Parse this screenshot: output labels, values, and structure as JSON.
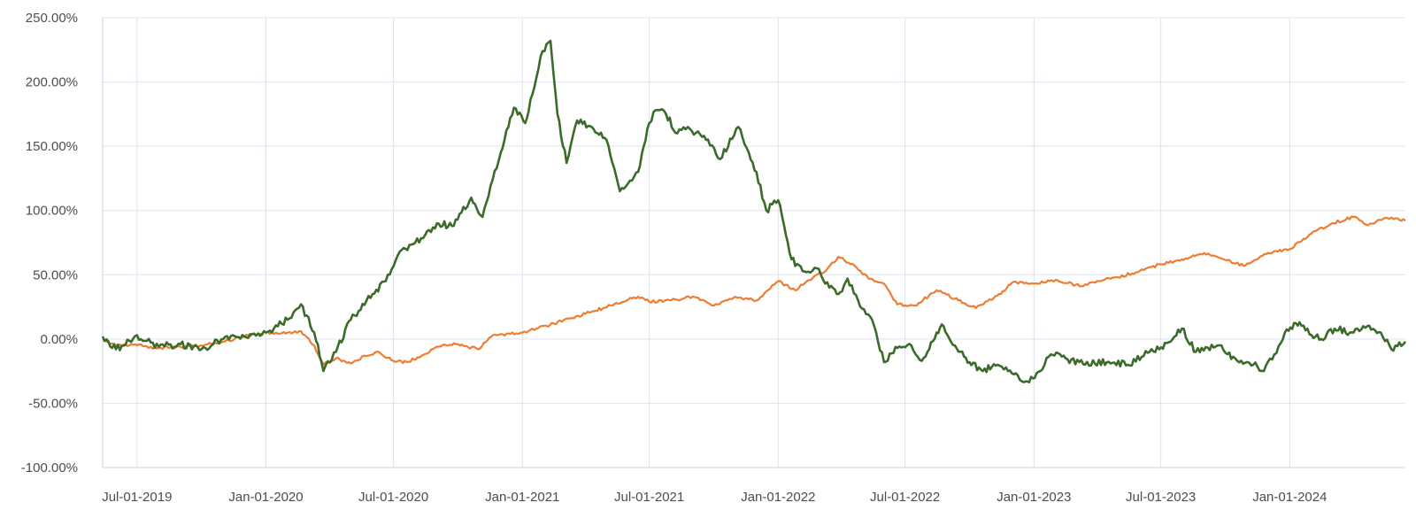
{
  "chart_data": {
    "type": "line",
    "title": "",
    "xlabel": "",
    "ylabel": "",
    "x_range": [
      "2019-05-13",
      "2024-06-14"
    ],
    "ylim": [
      -100,
      250
    ],
    "y_ticks": [
      250,
      200,
      150,
      100,
      50,
      0,
      -50,
      -100
    ],
    "y_tick_labels": [
      "250.00%",
      "200.00%",
      "150.00%",
      "100.00%",
      "50.00%",
      "0.00%",
      "-50.00%",
      "-100.00%"
    ],
    "x_ticks": [
      "2019-07-01",
      "2020-01-01",
      "2020-07-01",
      "2021-01-01",
      "2021-07-01",
      "2022-01-01",
      "2022-07-01",
      "2023-01-01",
      "2023-07-01",
      "2024-01-01"
    ],
    "x_tick_labels": [
      "Jul-01-2019",
      "Jan-01-2020",
      "Jul-01-2020",
      "Jan-01-2021",
      "Jul-01-2021",
      "Jan-01-2022",
      "Jul-01-2022",
      "Jan-01-2023",
      "Jul-01-2023",
      "Jan-01-2024"
    ],
    "grid": true,
    "legend": "none",
    "series": [
      {
        "color": "#ed7d31",
        "points": [
          [
            "2019-05-13",
            0
          ],
          [
            "2019-06-01",
            -5
          ],
          [
            "2019-07-01",
            -5
          ],
          [
            "2019-08-01",
            -7
          ],
          [
            "2019-09-01",
            -6
          ],
          [
            "2019-10-01",
            -5
          ],
          [
            "2019-11-01",
            -2
          ],
          [
            "2019-12-01",
            2
          ],
          [
            "2020-01-01",
            5
          ],
          [
            "2020-02-01",
            5
          ],
          [
            "2020-02-20",
            6
          ],
          [
            "2020-03-10",
            -5
          ],
          [
            "2020-03-23",
            -20
          ],
          [
            "2020-04-10",
            -15
          ],
          [
            "2020-05-01",
            -19
          ],
          [
            "2020-05-20",
            -13
          ],
          [
            "2020-06-10",
            -10
          ],
          [
            "2020-07-01",
            -17
          ],
          [
            "2020-07-20",
            -18
          ],
          [
            "2020-08-10",
            -13
          ],
          [
            "2020-09-01",
            -6
          ],
          [
            "2020-10-01",
            -4
          ],
          [
            "2020-10-30",
            -8
          ],
          [
            "2020-11-20",
            3
          ],
          [
            "2020-12-15",
            4
          ],
          [
            "2021-01-01",
            5
          ],
          [
            "2021-02-15",
            12
          ],
          [
            "2021-03-10",
            16
          ],
          [
            "2021-04-15",
            22
          ],
          [
            "2021-05-15",
            28
          ],
          [
            "2021-06-15",
            33
          ],
          [
            "2021-07-01",
            29
          ],
          [
            "2021-08-01",
            30
          ],
          [
            "2021-09-01",
            33
          ],
          [
            "2021-10-01",
            26
          ],
          [
            "2021-11-01",
            33
          ],
          [
            "2021-12-01",
            30
          ],
          [
            "2022-01-01",
            45
          ],
          [
            "2022-01-25",
            38
          ],
          [
            "2022-02-20",
            48
          ],
          [
            "2022-03-10",
            53
          ],
          [
            "2022-03-28",
            64
          ],
          [
            "2022-04-20",
            57
          ],
          [
            "2022-05-10",
            47
          ],
          [
            "2022-06-01",
            43
          ],
          [
            "2022-06-20",
            27
          ],
          [
            "2022-07-15",
            26
          ],
          [
            "2022-08-15",
            38
          ],
          [
            "2022-09-15",
            30
          ],
          [
            "2022-10-10",
            24
          ],
          [
            "2022-11-15",
            35
          ],
          [
            "2022-12-01",
            44
          ],
          [
            "2023-01-01",
            43
          ],
          [
            "2023-02-01",
            46
          ],
          [
            "2023-03-10",
            41
          ],
          [
            "2023-04-01",
            45
          ],
          [
            "2023-05-01",
            48
          ],
          [
            "2023-06-01",
            53
          ],
          [
            "2023-07-01",
            58
          ],
          [
            "2023-07-31",
            62
          ],
          [
            "2023-09-01",
            67
          ],
          [
            "2023-10-27",
            57
          ],
          [
            "2023-12-01",
            67
          ],
          [
            "2024-01-01",
            70
          ],
          [
            "2024-02-01",
            82
          ],
          [
            "2024-03-01",
            90
          ],
          [
            "2024-04-01",
            95
          ],
          [
            "2024-04-19",
            89
          ],
          [
            "2024-05-20",
            94
          ],
          [
            "2024-06-14",
            92
          ]
        ]
      },
      {
        "color": "#3a6b2a",
        "points": [
          [
            "2019-05-13",
            2
          ],
          [
            "2019-06-01",
            -8
          ],
          [
            "2019-07-01",
            3
          ],
          [
            "2019-08-01",
            -6
          ],
          [
            "2019-09-01",
            -4
          ],
          [
            "2019-10-01",
            -8
          ],
          [
            "2019-11-01",
            0
          ],
          [
            "2019-12-01",
            2
          ],
          [
            "2020-01-01",
            5
          ],
          [
            "2020-02-01",
            15
          ],
          [
            "2020-02-20",
            27
          ],
          [
            "2020-03-10",
            5
          ],
          [
            "2020-03-23",
            -25
          ],
          [
            "2020-04-10",
            -10
          ],
          [
            "2020-05-01",
            15
          ],
          [
            "2020-06-01",
            35
          ],
          [
            "2020-06-20",
            45
          ],
          [
            "2020-07-10",
            68
          ],
          [
            "2020-08-01",
            75
          ],
          [
            "2020-09-01",
            90
          ],
          [
            "2020-09-25",
            88
          ],
          [
            "2020-10-20",
            110
          ],
          [
            "2020-11-05",
            95
          ],
          [
            "2020-12-01",
            145
          ],
          [
            "2020-12-20",
            180
          ],
          [
            "2021-01-05",
            168
          ],
          [
            "2021-01-15",
            190
          ],
          [
            "2021-01-27",
            220
          ],
          [
            "2021-02-10",
            232
          ],
          [
            "2021-02-20",
            175
          ],
          [
            "2021-03-05",
            137
          ],
          [
            "2021-03-20",
            170
          ],
          [
            "2021-04-10",
            165
          ],
          [
            "2021-05-01",
            155
          ],
          [
            "2021-05-20",
            115
          ],
          [
            "2021-06-15",
            130
          ],
          [
            "2021-07-01",
            168
          ],
          [
            "2021-07-10",
            178
          ],
          [
            "2021-07-25",
            175
          ],
          [
            "2021-08-10",
            160
          ],
          [
            "2021-08-25",
            165
          ],
          [
            "2021-09-20",
            155
          ],
          [
            "2021-10-10",
            140
          ],
          [
            "2021-11-05",
            165
          ],
          [
            "2021-11-20",
            145
          ],
          [
            "2021-12-01",
            130
          ],
          [
            "2021-12-15",
            100
          ],
          [
            "2022-01-01",
            108
          ],
          [
            "2022-01-20",
            62
          ],
          [
            "2022-02-10",
            52
          ],
          [
            "2022-02-25",
            55
          ],
          [
            "2022-03-15",
            40
          ],
          [
            "2022-03-28",
            35
          ],
          [
            "2022-04-10",
            47
          ],
          [
            "2022-04-25",
            30
          ],
          [
            "2022-05-15",
            15
          ],
          [
            "2022-06-01",
            -18
          ],
          [
            "2022-06-20",
            -7
          ],
          [
            "2022-07-10",
            -5
          ],
          [
            "2022-07-25",
            -17
          ],
          [
            "2022-08-15",
            5
          ],
          [
            "2022-08-25",
            10
          ],
          [
            "2022-09-10",
            -5
          ],
          [
            "2022-10-01",
            -18
          ],
          [
            "2022-10-20",
            -25
          ],
          [
            "2022-11-10",
            -20
          ],
          [
            "2022-11-25",
            -25
          ],
          [
            "2022-12-20",
            -33
          ],
          [
            "2023-01-10",
            -25
          ],
          [
            "2023-01-25",
            -12
          ],
          [
            "2023-02-15",
            -15
          ],
          [
            "2023-03-15",
            -20
          ],
          [
            "2023-04-15",
            -18
          ],
          [
            "2023-05-15",
            -20
          ],
          [
            "2023-06-15",
            -10
          ],
          [
            "2023-07-15",
            -2
          ],
          [
            "2023-07-31",
            8
          ],
          [
            "2023-08-20",
            -10
          ],
          [
            "2023-09-20",
            -5
          ],
          [
            "2023-10-15",
            -15
          ],
          [
            "2023-11-10",
            -20
          ],
          [
            "2023-11-25",
            -25
          ],
          [
            "2023-12-10",
            -12
          ],
          [
            "2023-12-25",
            5
          ],
          [
            "2024-01-15",
            13
          ],
          [
            "2024-02-01",
            3
          ],
          [
            "2024-02-15",
            0
          ],
          [
            "2024-03-05",
            8
          ],
          [
            "2024-04-01",
            5
          ],
          [
            "2024-04-15",
            10
          ],
          [
            "2024-05-10",
            5
          ],
          [
            "2024-05-25",
            -8
          ],
          [
            "2024-06-14",
            -2
          ]
        ]
      }
    ]
  }
}
